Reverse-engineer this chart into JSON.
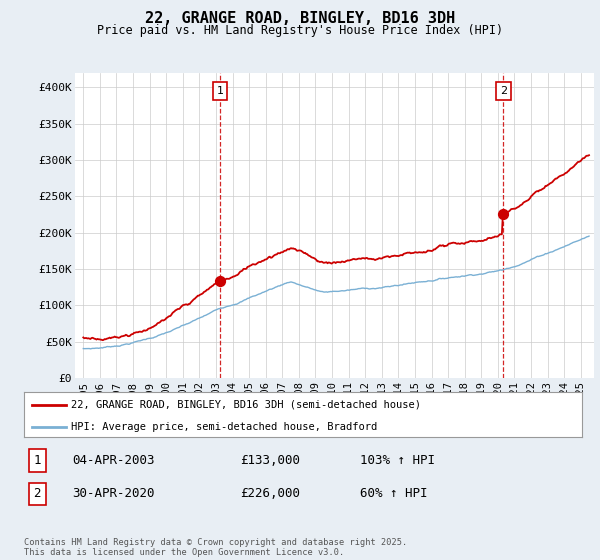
{
  "title": "22, GRANGE ROAD, BINGLEY, BD16 3DH",
  "subtitle": "Price paid vs. HM Land Registry's House Price Index (HPI)",
  "ylabel_ticks": [
    "£0",
    "£50K",
    "£100K",
    "£150K",
    "£200K",
    "£250K",
    "£300K",
    "£350K",
    "£400K"
  ],
  "ytick_values": [
    0,
    50000,
    100000,
    150000,
    200000,
    250000,
    300000,
    350000,
    400000
  ],
  "ylim": [
    0,
    420000
  ],
  "xlim_start": 1994.5,
  "xlim_end": 2025.8,
  "transaction1": {
    "label": "1",
    "date": "04-APR-2003",
    "price": 133000,
    "year": 2003.25,
    "pct": "103%",
    "direction": "↑"
  },
  "transaction2": {
    "label": "2",
    "date": "30-APR-2020",
    "price": 226000,
    "year": 2020.33,
    "pct": "60%",
    "direction": "↑"
  },
  "red_line_color": "#cc0000",
  "blue_line_color": "#7ab0d4",
  "vline_color": "#cc0000",
  "background_color": "#e8eef4",
  "plot_bg_color": "#ffffff",
  "grid_color": "#cccccc",
  "legend_label_red": "22, GRANGE ROAD, BINGLEY, BD16 3DH (semi-detached house)",
  "legend_label_blue": "HPI: Average price, semi-detached house, Bradford",
  "footnote": "Contains HM Land Registry data © Crown copyright and database right 2025.\nThis data is licensed under the Open Government Licence v3.0.",
  "xtick_years": [
    1995,
    1996,
    1997,
    1998,
    1999,
    2000,
    2001,
    2002,
    2003,
    2004,
    2005,
    2006,
    2007,
    2008,
    2009,
    2010,
    2011,
    2012,
    2013,
    2014,
    2015,
    2016,
    2017,
    2018,
    2019,
    2020,
    2021,
    2022,
    2023,
    2024,
    2025
  ],
  "xtick_labels": [
    "1995",
    "1996",
    "1997",
    "1998",
    "1999",
    "2000",
    "2001",
    "2002",
    "2003",
    "2004",
    "2005",
    "2006",
    "2007",
    "2008",
    "2009",
    "2010",
    "2011",
    "2012",
    "2013",
    "2014",
    "2015",
    "2016",
    "2017",
    "2018",
    "2019",
    "2020",
    "2021",
    "2022",
    "2023",
    "2024",
    "2025"
  ]
}
